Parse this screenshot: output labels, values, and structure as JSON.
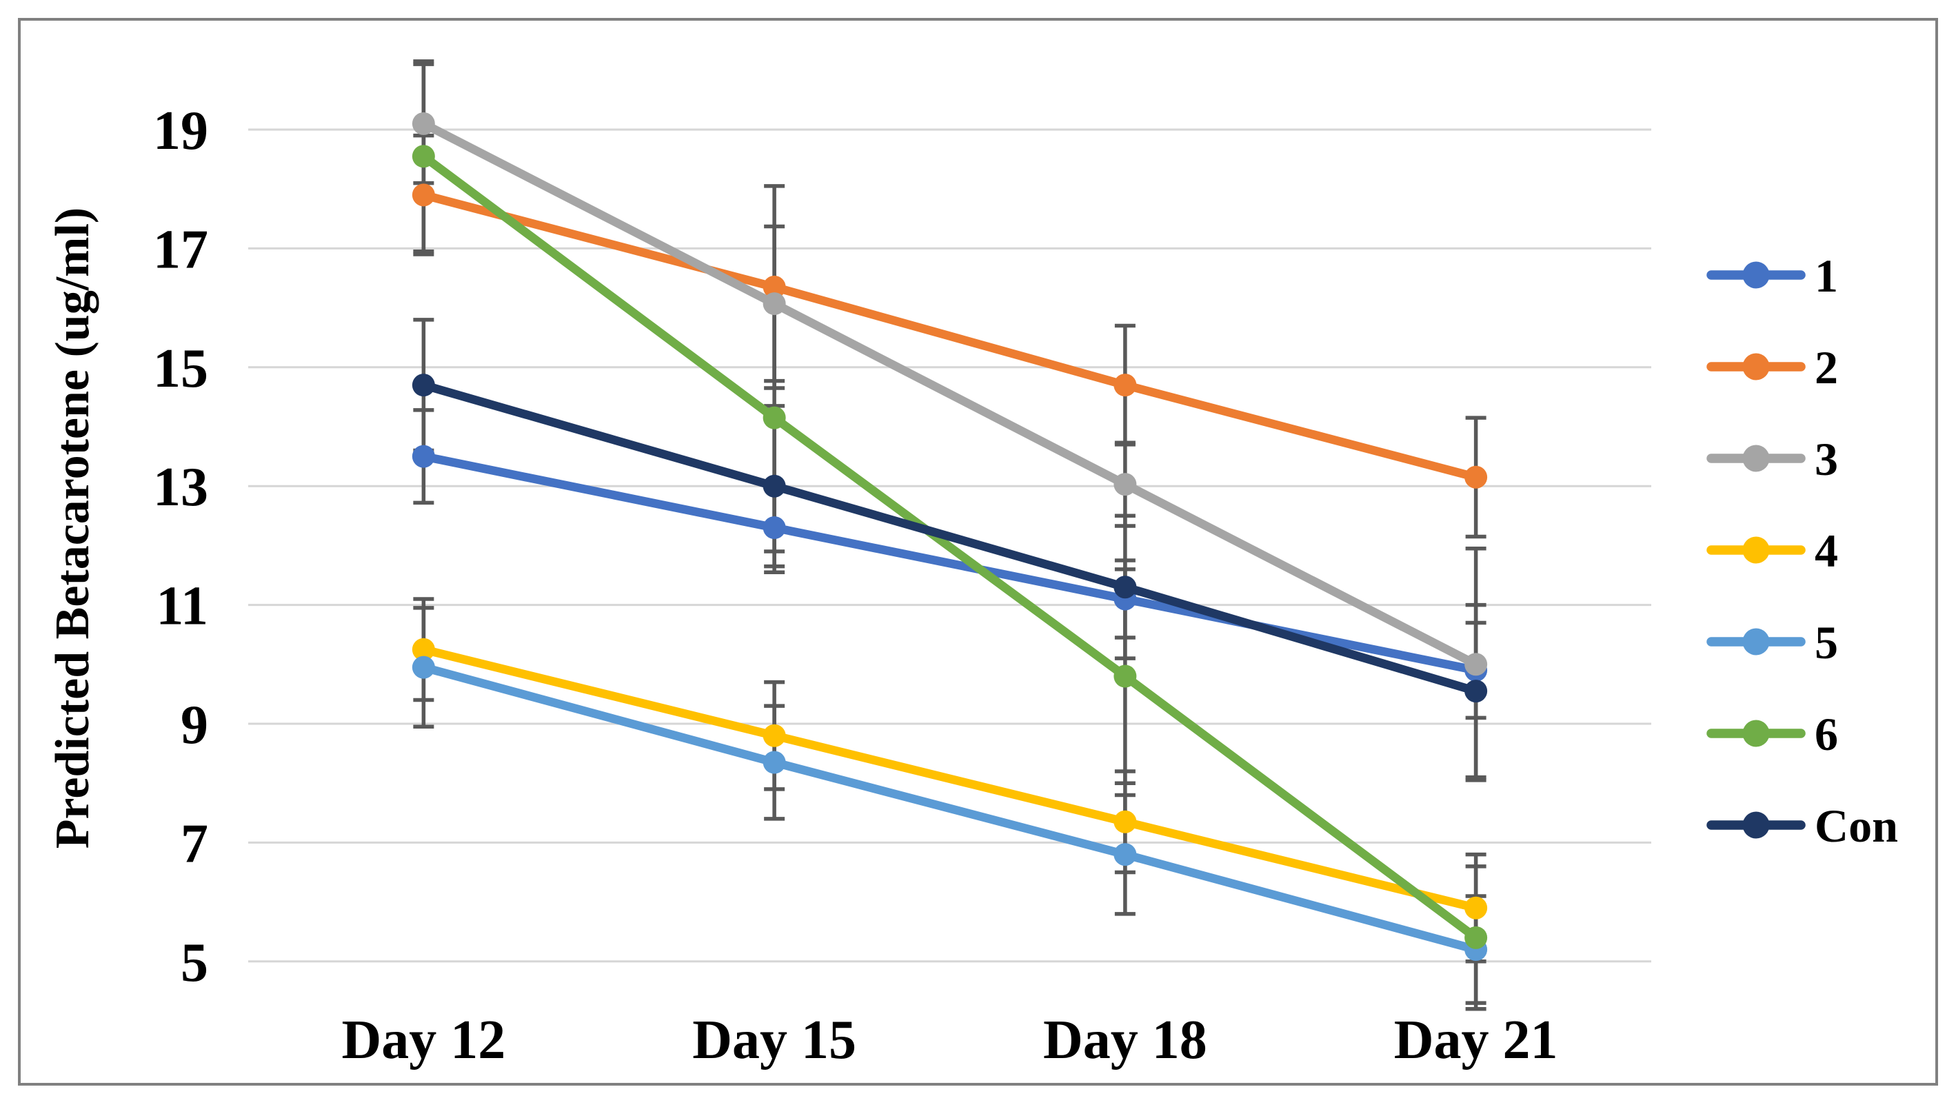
{
  "chart_data": {
    "type": "line",
    "title": "",
    "xlabel": "",
    "ylabel": "Predicted Betacarotene  (ug/ml)",
    "categories": [
      "Day 12",
      "Day 15",
      "Day 18",
      "Day 21"
    ],
    "y_ticks": [
      19,
      17,
      15,
      13,
      11,
      9,
      7,
      5
    ],
    "ylim": [
      5,
      19
    ],
    "grid": true,
    "legend_position": "right",
    "error_bars": true,
    "series": [
      {
        "name": "1",
        "color": "#4472C4",
        "values": [
          13.5,
          12.3,
          11.1,
          9.9
        ],
        "errors": [
          0.78,
          0.75,
          0.65,
          0.8
        ]
      },
      {
        "name": "2",
        "color": "#ED7D31",
        "values": [
          17.9,
          16.35,
          14.7,
          13.15
        ],
        "errors": [
          1.0,
          1.7,
          1.0,
          1.0
        ]
      },
      {
        "name": "3",
        "color": "#A5A5A5",
        "values": [
          19.1,
          16.07,
          13.03,
          10.0
        ],
        "errors": [
          1.0,
          1.3,
          0.7,
          1.95
        ]
      },
      {
        "name": "4",
        "color": "#FFC000",
        "values": [
          10.25,
          8.8,
          7.35,
          5.9
        ],
        "errors": [
          0.85,
          0.9,
          0.85,
          0.9
        ]
      },
      {
        "name": "5",
        "color": "#5B9BD5",
        "values": [
          9.95,
          8.35,
          6.8,
          5.2
        ],
        "errors": [
          1.0,
          0.95,
          1.0,
          0.9
        ]
      },
      {
        "name": "6",
        "color": "#70AD47",
        "values": [
          18.55,
          14.15,
          9.8,
          5.4
        ],
        "errors": [
          1.6,
          2.25,
          1.8,
          1.2
        ]
      },
      {
        "name": "Con",
        "color": "#1F3864",
        "values": [
          14.7,
          13.0,
          11.3,
          9.55
        ],
        "errors": [
          1.1,
          1.35,
          1.2,
          1.45
        ]
      }
    ],
    "colors": {
      "gridline": "#D6D6D6",
      "error_bar": "#595959",
      "border": "#808080",
      "background": "#FFFFFF",
      "text": "#000000"
    }
  }
}
